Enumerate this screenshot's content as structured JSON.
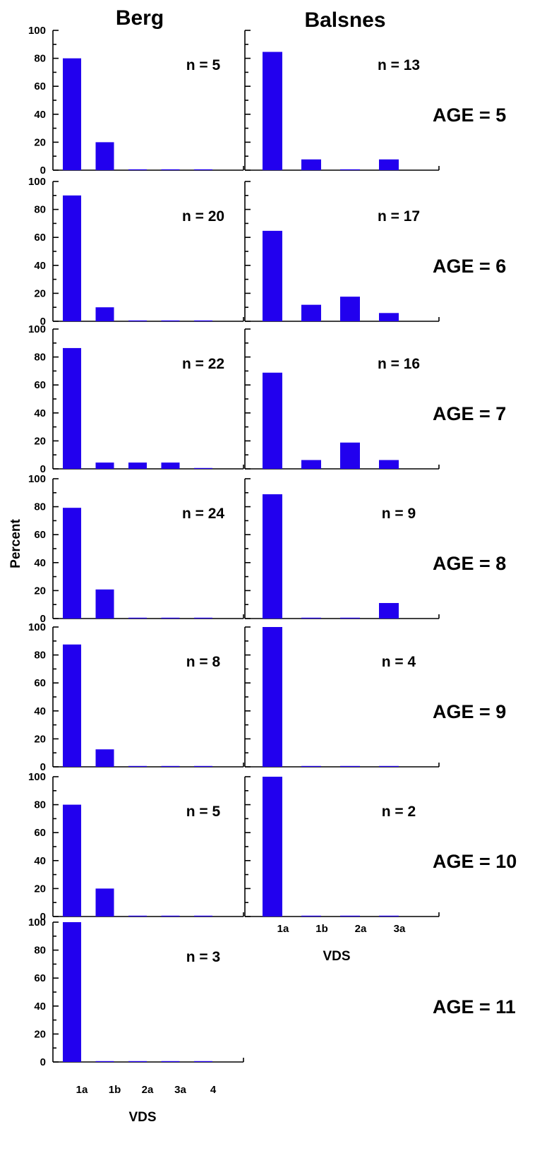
{
  "chart_data": {
    "type": "bar",
    "columns": [
      "Berg",
      "Balsnes"
    ],
    "y_axis_title": "Percent",
    "x_axis_title": "VDS",
    "ylim": [
      0,
      100
    ],
    "y_ticks": [
      "0",
      "20",
      "40",
      "60",
      "80",
      "100"
    ],
    "bar_color": "#2200ee",
    "berg_categories": [
      "1a",
      "1b",
      "2a",
      "3a",
      "4"
    ],
    "balsnes_categories": [
      "1a",
      "1b",
      "2a",
      "3a"
    ],
    "rows": [
      {
        "age_label": "AGE = 5",
        "berg": {
          "n_label": "n = 5",
          "values": [
            80,
            20,
            0,
            0,
            0
          ]
        },
        "balsnes": {
          "n_label": "n = 13",
          "values": [
            84.6,
            7.7,
            0,
            7.7
          ]
        }
      },
      {
        "age_label": "AGE = 6",
        "berg": {
          "n_label": "n = 20",
          "values": [
            90,
            10,
            0,
            0,
            0
          ]
        },
        "balsnes": {
          "n_label": "n = 17",
          "values": [
            64.7,
            11.8,
            17.6,
            5.9
          ]
        }
      },
      {
        "age_label": "AGE = 7",
        "berg": {
          "n_label": "n = 22",
          "values": [
            86.4,
            4.5,
            4.5,
            4.5,
            0
          ]
        },
        "balsnes": {
          "n_label": "n = 16",
          "values": [
            68.8,
            6.3,
            18.8,
            6.3
          ]
        }
      },
      {
        "age_label": "AGE = 8",
        "berg": {
          "n_label": "n = 24",
          "values": [
            79.2,
            20.8,
            0,
            0,
            0
          ]
        },
        "balsnes": {
          "n_label": "n = 9",
          "values": [
            88.9,
            0,
            0,
            11.1
          ]
        }
      },
      {
        "age_label": "AGE = 9",
        "berg": {
          "n_label": "n = 8",
          "values": [
            87.5,
            12.5,
            0,
            0,
            0
          ]
        },
        "balsnes": {
          "n_label": "n = 4",
          "values": [
            100,
            0,
            0,
            0
          ]
        }
      },
      {
        "age_label": "AGE = 10",
        "berg": {
          "n_label": "n = 5",
          "values": [
            80,
            20,
            0,
            0,
            0
          ]
        },
        "balsnes": {
          "n_label": "n = 2",
          "values": [
            100,
            0,
            0,
            0
          ]
        }
      },
      {
        "age_label": "AGE = 11",
        "berg": {
          "n_label": "n = 3",
          "values": [
            100,
            0,
            0,
            0,
            0
          ]
        },
        "balsnes": null
      }
    ]
  }
}
